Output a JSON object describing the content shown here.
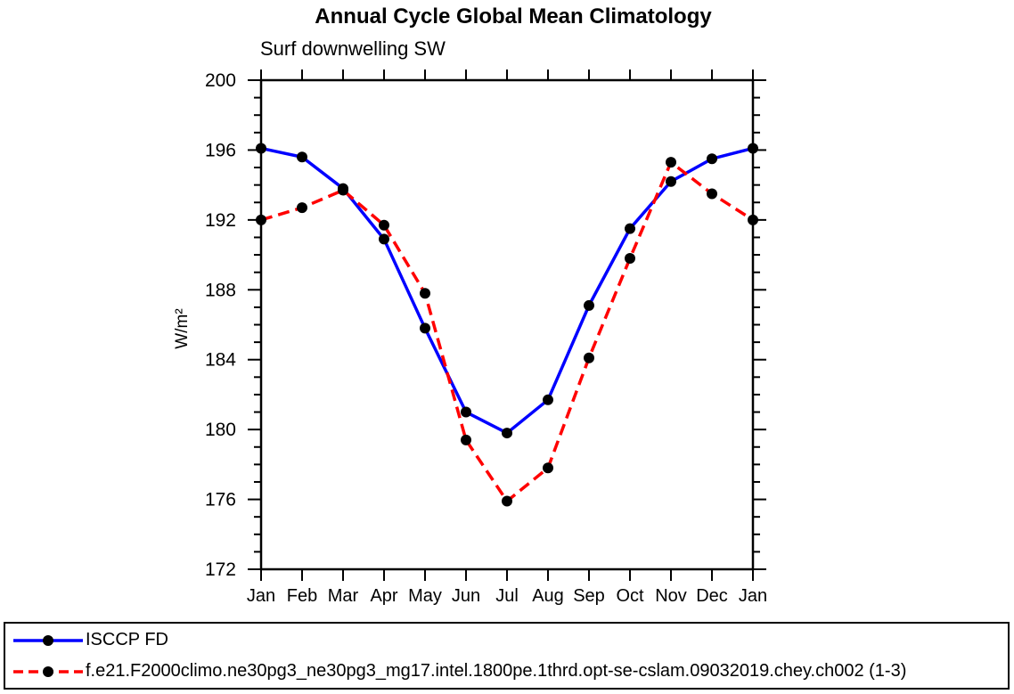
{
  "chart_data": {
    "type": "line",
    "title": "Annual Cycle Global Mean Climatology",
    "subtitle": "Surf downwelling SW",
    "ylabel": "W/m²",
    "categories": [
      "Jan",
      "Feb",
      "Mar",
      "Apr",
      "May",
      "Jun",
      "Jul",
      "Aug",
      "Sep",
      "Oct",
      "Nov",
      "Dec",
      "Jan"
    ],
    "ylim": [
      172,
      200
    ],
    "ytick_step": 4,
    "yminor_step": 1,
    "ytick_labels": [
      "172",
      "176",
      "180",
      "184",
      "188",
      "192",
      "196",
      "200"
    ],
    "grid": false,
    "legend_position": "bottom",
    "marker": "filled-circle",
    "marker_color": "#000000",
    "axis_color": "#000000",
    "series": [
      {
        "name": "ISCCP FD",
        "color": "#0000ff",
        "dash": "solid",
        "values": [
          196.1,
          195.6,
          193.8,
          190.9,
          185.8,
          181.0,
          179.8,
          181.7,
          187.1,
          191.5,
          194.2,
          195.5,
          196.1
        ]
      },
      {
        "name": "f.e21.F2000climo.ne30pg3_ne30pg3_mg17.intel.1800pe.1thrd.opt-se-cslam.09032019.chey.ch002 (1-3)",
        "color": "#ff0000",
        "dash": "dashed",
        "values": [
          192.0,
          192.7,
          193.7,
          191.7,
          187.8,
          179.4,
          175.9,
          177.8,
          184.1,
          189.8,
          195.3,
          193.5,
          192.0
        ]
      }
    ]
  }
}
